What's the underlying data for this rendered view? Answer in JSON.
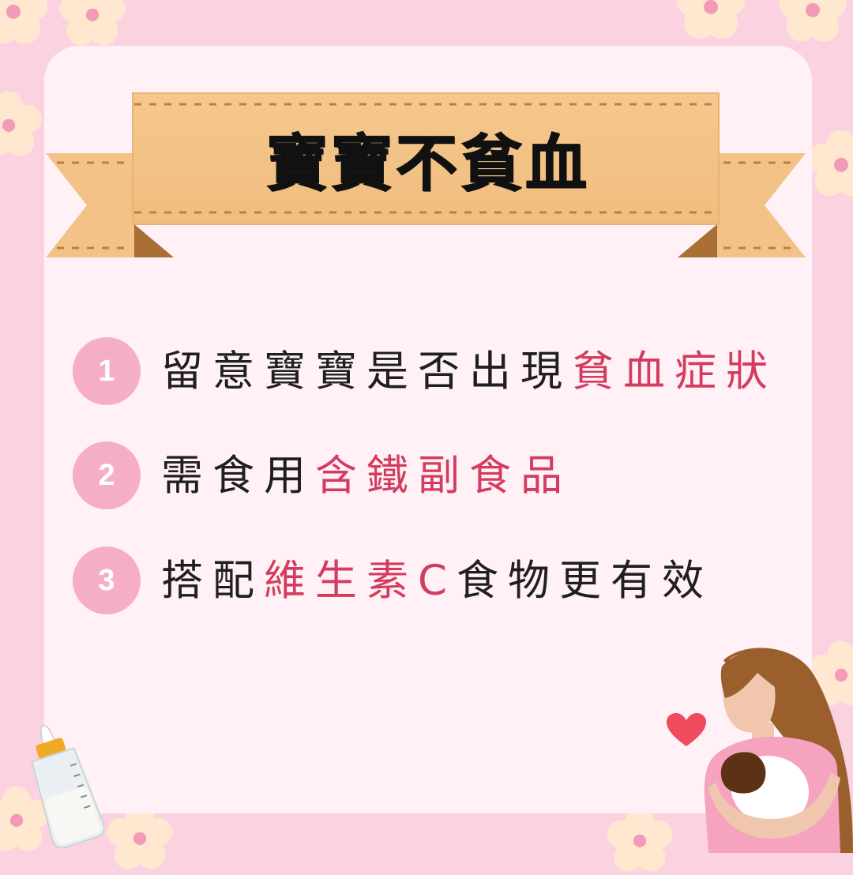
{
  "title": "寶寶不貧血",
  "items": [
    {
      "number": "1",
      "prefix": "留意寶寶是否出現",
      "highlight": "貧血症狀",
      "suffix": ""
    },
    {
      "number": "2",
      "prefix": "需食用",
      "highlight": "含鐵副食品",
      "suffix": ""
    },
    {
      "number": "3",
      "prefix": "搭配",
      "highlight": "維生素C",
      "suffix": "食物更有效"
    }
  ],
  "colors": {
    "background": "#fbd3e0",
    "card": "#fff1f5",
    "number_circle": "#f6aec7",
    "highlight": "#d33c5f",
    "ribbon": "#f5c98e"
  },
  "icons": [
    "flower-icon",
    "ribbon-banner",
    "baby-bottle-icon",
    "heart-icon",
    "mother-holding-baby-illustration"
  ]
}
